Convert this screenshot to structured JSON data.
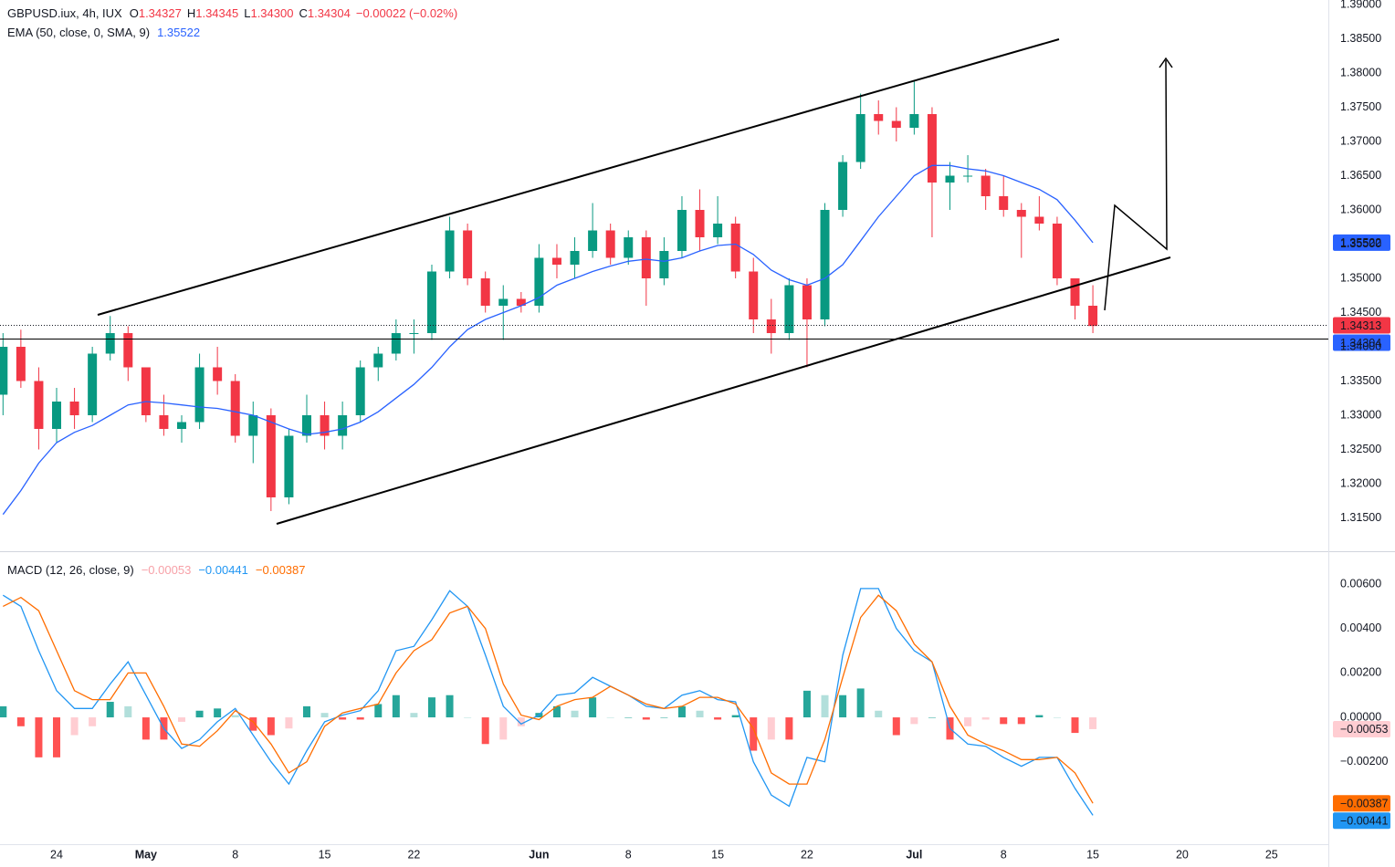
{
  "chart_data": [
    {
      "type": "candlestick",
      "title": "GBPUSD.iux, 4h, IUX",
      "header_values": [
        "O",
        "1.34327",
        "H",
        "1.34345",
        "L",
        "1.34300",
        "C",
        "1.34304"
      ],
      "change": "−0.00022 (−0.02%)",
      "up_color": "#089981",
      "down_color": "#f23645",
      "categories": [
        null,
        null,
        null,
        "24",
        null,
        null,
        null,
        null,
        "May",
        null,
        null,
        null,
        null,
        "8",
        null,
        null,
        null,
        null,
        "15",
        null,
        null,
        null,
        null,
        "22",
        null,
        null,
        null,
        null,
        null,
        null,
        "Jun",
        null,
        null,
        null,
        null,
        "8",
        null,
        null,
        null,
        null,
        "15",
        null,
        null,
        null,
        null,
        "22",
        null,
        null,
        null,
        null,
        null,
        "Jul",
        null,
        null,
        null,
        null,
        "8",
        null,
        null,
        null,
        null,
        "15",
        null,
        null,
        null,
        null,
        "20",
        null,
        null,
        null,
        null,
        "25"
      ],
      "open": [
        1.333,
        1.34,
        1.335,
        1.328,
        1.332,
        1.33,
        1.339,
        1.342,
        1.337,
        1.33,
        1.328,
        1.329,
        1.337,
        1.335,
        1.327,
        1.33,
        1.318,
        1.327,
        1.33,
        1.327,
        1.33,
        1.337,
        1.339,
        1.342,
        1.342,
        1.351,
        1.357,
        1.35,
        1.346,
        1.347,
        1.346,
        1.353,
        1.352,
        1.354,
        1.357,
        1.353,
        1.356,
        1.35,
        1.354,
        1.36,
        1.356,
        1.358,
        1.351,
        1.344,
        1.342,
        1.349,
        1.344,
        1.36,
        1.367,
        1.374,
        1.373,
        1.372,
        1.374,
        1.364,
        1.365,
        1.365,
        1.362,
        1.36,
        1.359,
        1.358,
        1.35,
        1.346,
        null,
        null,
        null,
        null,
        null,
        null,
        null,
        null,
        null,
        null
      ],
      "high": [
        1.342,
        1.3425,
        1.337,
        1.334,
        1.334,
        1.34,
        1.3445,
        1.343,
        1.337,
        1.333,
        1.33,
        1.339,
        1.34,
        1.336,
        1.332,
        1.331,
        1.328,
        1.333,
        1.332,
        1.332,
        1.338,
        1.34,
        1.344,
        1.344,
        1.352,
        1.359,
        1.358,
        1.351,
        1.349,
        1.348,
        1.355,
        1.355,
        1.356,
        1.361,
        1.358,
        1.357,
        1.357,
        1.356,
        1.362,
        1.363,
        1.362,
        1.359,
        1.353,
        1.347,
        1.35,
        1.35,
        1.361,
        1.368,
        1.377,
        1.376,
        1.375,
        1.379,
        1.375,
        1.367,
        1.368,
        1.366,
        1.365,
        1.361,
        1.362,
        1.359,
        1.35,
        1.349,
        null,
        null,
        null,
        null,
        null,
        null,
        null,
        null,
        null,
        null
      ],
      "low": [
        1.33,
        1.334,
        1.325,
        1.326,
        1.328,
        1.329,
        1.338,
        1.335,
        1.329,
        1.327,
        1.326,
        1.328,
        1.333,
        1.326,
        1.323,
        1.316,
        1.317,
        1.326,
        1.325,
        1.325,
        1.329,
        1.335,
        1.338,
        1.339,
        1.341,
        1.35,
        1.349,
        1.345,
        1.341,
        1.345,
        1.345,
        1.35,
        1.35,
        1.353,
        1.352,
        1.352,
        1.346,
        1.349,
        1.353,
        1.354,
        1.355,
        1.35,
        1.342,
        1.339,
        1.341,
        1.337,
        1.343,
        1.359,
        1.366,
        1.371,
        1.37,
        1.371,
        1.356,
        1.36,
        1.364,
        1.36,
        1.359,
        1.353,
        1.357,
        1.349,
        1.344,
        1.342,
        null,
        null,
        null,
        null,
        null,
        null,
        null,
        null,
        null,
        null
      ],
      "close": [
        1.34,
        1.335,
        1.328,
        1.332,
        1.33,
        1.339,
        1.342,
        1.337,
        1.33,
        1.328,
        1.329,
        1.337,
        1.335,
        1.327,
        1.33,
        1.318,
        1.327,
        1.33,
        1.327,
        1.33,
        1.337,
        1.339,
        1.342,
        1.342,
        1.351,
        1.357,
        1.35,
        1.346,
        1.347,
        1.346,
        1.353,
        1.352,
        1.354,
        1.357,
        1.353,
        1.356,
        1.35,
        1.354,
        1.36,
        1.356,
        1.358,
        1.351,
        1.344,
        1.342,
        1.349,
        1.344,
        1.36,
        1.367,
        1.374,
        1.373,
        1.372,
        1.374,
        1.364,
        1.365,
        1.365,
        1.362,
        1.36,
        1.359,
        1.358,
        1.35,
        1.346,
        1.34304,
        null,
        null,
        null,
        null,
        null,
        null,
        null,
        null,
        null,
        null
      ],
      "series": [
        {
          "name": "EMA (50, close, 0, SMA, 9)",
          "color": "#2962ff",
          "values": [
            1.3155,
            1.319,
            1.323,
            1.326,
            1.3275,
            1.3285,
            1.33,
            1.3315,
            1.332,
            1.3318,
            1.3315,
            1.3312,
            1.331,
            1.3305,
            1.33,
            1.329,
            1.328,
            1.3272,
            1.3275,
            1.328,
            1.329,
            1.3305,
            1.3325,
            1.3345,
            1.337,
            1.34,
            1.3425,
            1.344,
            1.345,
            1.346,
            1.3472,
            1.349,
            1.35,
            1.351,
            1.3518,
            1.3525,
            1.3528,
            1.3525,
            1.353,
            1.354,
            1.3548,
            1.355,
            1.3535,
            1.3512,
            1.3498,
            1.349,
            1.35,
            1.352,
            1.3555,
            1.359,
            1.362,
            1.365,
            1.3665,
            1.3665,
            1.366,
            1.3657,
            1.365,
            1.364,
            1.363,
            1.3615,
            1.3585,
            1.35522,
            null,
            null,
            null,
            null,
            null,
            null,
            null,
            null,
            null,
            null
          ]
        }
      ],
      "price_lines": [
        {
          "value": 1.34313,
          "color": "#f23645"
        },
        {
          "value": 1.34304,
          "color": "#2962ff"
        }
      ],
      "ylim": [
        1.31013,
        1.39067
      ],
      "yticks": [
        {
          "value": 1.39,
          "label": "1.39000"
        },
        {
          "value": 1.385,
          "label": "1.38500"
        },
        {
          "value": 1.38,
          "label": "1.38000"
        },
        {
          "value": 1.375,
          "label": "1.37500"
        },
        {
          "value": 1.37,
          "label": "1.37000"
        },
        {
          "value": 1.365,
          "label": "1.36500"
        },
        {
          "value": 1.36,
          "label": "1.36000"
        },
        {
          "value": 1.355,
          "label": "1.35500"
        },
        {
          "value": 1.35,
          "label": "1.35000"
        },
        {
          "value": 1.345,
          "label": "1.34500"
        },
        {
          "value": 1.34,
          "label": "1.34000"
        },
        {
          "value": 1.335,
          "label": "1.33500"
        },
        {
          "value": 1.33,
          "label": "1.33000"
        },
        {
          "value": 1.325,
          "label": "1.32500"
        },
        {
          "value": 1.32,
          "label": "1.32000"
        },
        {
          "value": 1.315,
          "label": "1.31500"
        }
      ]
    },
    {
      "type": "macd",
      "title": "MACD (12, 26, close, 9)",
      "legend_values": [
        "−0.00053",
        "−0.00441",
        "−0.00387"
      ],
      "histogram": {
        "colors": [
          "#26a69a",
          "#b2dfdb",
          "#ff5252",
          "#ffcdd2"
        ],
        "values": [
          0.0005,
          -0.0004,
          -0.0018,
          -0.0018,
          -0.0008,
          -0.0004,
          0.0007,
          0.0005,
          -0.001,
          -0.001,
          -0.0002,
          0.0003,
          0.0004,
          0.0001,
          -0.0006,
          -0.0008,
          -0.0005,
          0.0005,
          0.0002,
          -0.0001,
          -0.0001,
          0.0006,
          0.001,
          0.0002,
          0.0009,
          0.001,
          0,
          -0.0012,
          -0.001,
          -0.0004,
          0.0002,
          0.0005,
          0.0003,
          0.0009,
          0,
          0,
          -0.0001,
          0,
          0.0005,
          0.0003,
          -0.0001,
          0.0001,
          -0.0015,
          -0.001,
          -0.001,
          0.0012,
          0.001,
          0.001,
          0.0013,
          0.0003,
          -0.0008,
          -0.0003,
          0,
          -0.001,
          -0.0004,
          -0.0001,
          -0.0003,
          -0.0003,
          0.0001,
          0,
          -0.0007,
          -0.00053,
          null,
          null,
          null,
          null,
          null,
          null,
          null,
          null,
          null,
          null
        ]
      },
      "series": [
        {
          "color": "#2196f3",
          "values": [
            0.0055,
            0.005,
            0.003,
            0.0012,
            0.0004,
            0.0004,
            0.0015,
            0.0025,
            0.001,
            -0.0005,
            -0.0014,
            -0.001,
            -0.0002,
            0.0004,
            -0.0008,
            -0.002,
            -0.003,
            -0.0015,
            -0.0002,
            0.0001,
            0.0003,
            0.0012,
            0.003,
            0.0032,
            0.0044,
            0.0057,
            0.005,
            0.0028,
            0.0005,
            -0.0003,
            0.0001,
            0.001,
            0.0011,
            0.0018,
            0.0014,
            0.001,
            0.0005,
            0.0004,
            0.001,
            0.0012,
            0.0008,
            0.0007,
            -0.002,
            -0.0035,
            -0.004,
            -0.0018,
            -0.002,
            0.0028,
            0.0058,
            0.0058,
            0.004,
            0.003,
            0.0025,
            -0.0005,
            -0.0012,
            -0.0013,
            -0.0018,
            -0.0022,
            -0.0018,
            -0.0018,
            -0.0032,
            -0.00441,
            null,
            null,
            null,
            null,
            null,
            null,
            null,
            null,
            null,
            null
          ]
        },
        {
          "color": "#ff6d00",
          "values": [
            0.005,
            0.0054,
            0.0048,
            0.003,
            0.0012,
            0.0008,
            0.0008,
            0.002,
            0.002,
            0.0005,
            -0.0012,
            -0.0013,
            -0.0006,
            0.0003,
            -0.0002,
            -0.0012,
            -0.0025,
            -0.002,
            -0.0004,
            0.0002,
            0.0004,
            0.0006,
            0.002,
            0.003,
            0.0035,
            0.0047,
            0.005,
            0.004,
            0.0015,
            0.0001,
            -0.0001,
            0.0005,
            0.0008,
            0.0009,
            0.0014,
            0.001,
            0.0006,
            0.0004,
            0.0005,
            0.0009,
            0.0009,
            0.0006,
            -0.0005,
            -0.0025,
            -0.003,
            -0.003,
            -0.001,
            0.0018,
            0.0045,
            0.0055,
            0.0048,
            0.0033,
            0.0025,
            0.0005,
            -0.0008,
            -0.0012,
            -0.0015,
            -0.0019,
            -0.0019,
            -0.0018,
            -0.0025,
            -0.00387,
            null,
            null,
            null,
            null,
            null,
            null,
            null,
            null,
            null,
            null
          ]
        }
      ],
      "ylim": [
        -0.00571,
        0.00744
      ],
      "yticks": [
        {
          "value": 0.006,
          "label": "0.00600"
        },
        {
          "value": 0.004,
          "label": "0.00400"
        },
        {
          "value": 0.002,
          "label": "0.00200"
        },
        {
          "value": 0,
          "label": "0.00000"
        },
        {
          "value": -0.002,
          "label": "−0.00200"
        }
      ]
    }
  ]
}
